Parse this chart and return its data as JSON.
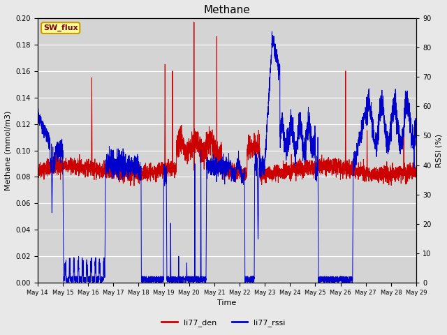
{
  "title": "Methane",
  "ylabel_left": "Methane (mmol/m3)",
  "ylabel_right": "RSSI (%)",
  "xlabel": "Time",
  "ylim_left": [
    0.0,
    0.2
  ],
  "ylim_right": [
    0,
    90
  ],
  "yticks_left": [
    0.0,
    0.02,
    0.04,
    0.06,
    0.08,
    0.1,
    0.12,
    0.14,
    0.16,
    0.18,
    0.2
  ],
  "yticks_right": [
    0,
    10,
    20,
    30,
    40,
    50,
    60,
    70,
    80,
    90
  ],
  "xtick_labels": [
    "May 14",
    "May 15",
    "May 16",
    "May 17",
    "May 18",
    "May 19",
    "May 20",
    "May 21",
    "May 22",
    "May 23",
    "May 24",
    "May 25",
    "May 26",
    "May 27",
    "May 28",
    "May 29"
  ],
  "color_red": "#cc0000",
  "color_blue": "#0000cc",
  "bg_color": "#e8e8e8",
  "plot_bg_color": "#d4d4d4",
  "legend_label_red": "li77_den",
  "legend_label_blue": "li77_rssi",
  "annotation_text": "SW_flux",
  "annotation_bg": "#ffff99",
  "annotation_border": "#cc9900",
  "n_days": 15,
  "n_points": 4320
}
